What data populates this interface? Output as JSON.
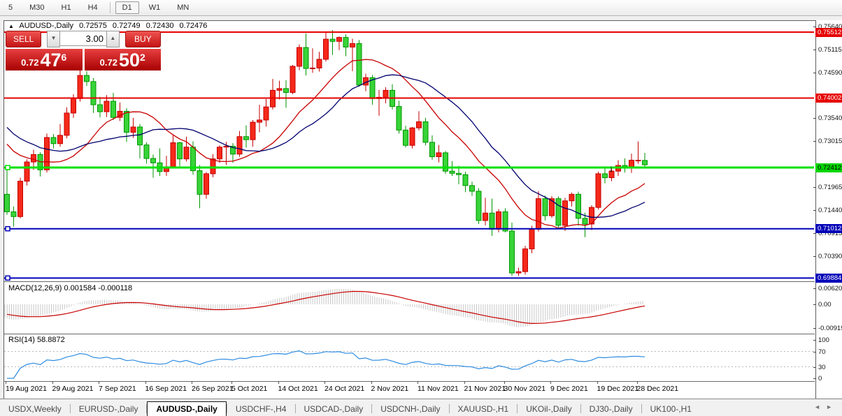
{
  "toolbar": {
    "timeframes": [
      {
        "label": "5",
        "active": false
      },
      {
        "label": "M30",
        "active": false
      },
      {
        "label": "H1",
        "active": false
      },
      {
        "label": "H4",
        "active": false
      },
      {
        "label": "D1",
        "active": true
      },
      {
        "label": "W1",
        "active": false
      },
      {
        "label": "MN",
        "active": false
      }
    ]
  },
  "chart_header": {
    "expand_icon": "▲",
    "symbol_period": "AUDUSD-,Daily",
    "open": "0.72575",
    "high": "0.72749",
    "low": "0.72430",
    "close": "0.72476"
  },
  "trade_panel": {
    "sell_label": "SELL",
    "buy_label": "BUY",
    "volume": "3.00",
    "spin_down_icon": "▼",
    "spin_up_icon": "▲",
    "sell_price_prefix": "0.72",
    "sell_price_big": "47",
    "sell_price_sup": "6",
    "buy_price_prefix": "0.72",
    "buy_price_big": "50",
    "buy_price_sup": "2"
  },
  "price_axis": {
    "ticks": [
      "0.75640",
      "0.75115",
      "0.74590",
      "0.73540",
      "0.73015",
      "0.71965",
      "0.71440",
      "0.70915",
      "0.70390"
    ],
    "badges": [
      {
        "value": "0.75512",
        "bg": "#e60000",
        "fg": "#ffffff"
      },
      {
        "value": "0.74002",
        "bg": "#e60000",
        "fg": "#ffffff"
      },
      {
        "value": "0.72412",
        "bg": "#00d500",
        "fg": "#000000"
      },
      {
        "value": "0.71012",
        "bg": "#0000b9",
        "fg": "#ffffff"
      },
      {
        "value": "0.69884",
        "bg": "#0000b9",
        "fg": "#ffffff"
      }
    ]
  },
  "indicators": {
    "macd": {
      "label": "MACD(12,26,9)",
      "values": "0.001584 -0.000118",
      "axis_ticks": [
        "0.006201",
        "0.00",
        "-0.00919"
      ]
    },
    "rsi": {
      "label": "RSI(14)",
      "value": "58.8872",
      "axis_ticks": [
        "100",
        "70",
        "30",
        "0"
      ],
      "levels": [
        70,
        30
      ]
    }
  },
  "x_axis": {
    "labels": [
      {
        "text": "19 Aug 2021",
        "index": 0
      },
      {
        "text": "29 Aug 2021",
        "index": 7
      },
      {
        "text": "7 Sep 2021",
        "index": 14
      },
      {
        "text": "16 Sep 2021",
        "index": 21
      },
      {
        "text": "26 Sep 2021",
        "index": 28
      },
      {
        "text": "5 Oct 2021",
        "index": 34
      },
      {
        "text": "14 Oct 2021",
        "index": 41
      },
      {
        "text": "24 Oct 2021",
        "index": 48
      },
      {
        "text": "2 Nov 2021",
        "index": 55
      },
      {
        "text": "11 Nov 2021",
        "index": 62
      },
      {
        "text": "21 Nov 2021",
        "index": 69
      },
      {
        "text": "30 Nov 2021",
        "index": 75
      },
      {
        "text": "9 Dec 2021",
        "index": 82
      },
      {
        "text": "19 Dec 2021",
        "index": 89
      },
      {
        "text": "28 Dec 2021",
        "index": 95
      }
    ]
  },
  "tabs": {
    "items": [
      {
        "label": "USDX,Weekly",
        "active": false
      },
      {
        "label": "EURUSD-,Daily",
        "active": false
      },
      {
        "label": "AUDUSD-,Daily",
        "active": true
      },
      {
        "label": "USDCHF-,H4",
        "active": false
      },
      {
        "label": "USDCAD-,Daily",
        "active": false
      },
      {
        "label": "USDCNH-,Daily",
        "active": false
      },
      {
        "label": "XAUUSD-,H1",
        "active": false
      },
      {
        "label": "UKOil-,Daily",
        "active": false
      },
      {
        "label": "DJ30-,Daily",
        "active": false
      },
      {
        "label": "UK100-,H1",
        "active": false
      }
    ],
    "scroll_left": "◄",
    "scroll_right": "►"
  },
  "annotations": [
    {
      "type": "down-arrow",
      "glyph": "↓",
      "index": 91,
      "price": 0.7232
    }
  ],
  "chart_data": {
    "type": "candlestick",
    "symbol": "AUDUSD-",
    "period": "Daily",
    "bull_color": "#f5291a",
    "bear_color": "#38d438",
    "hlines": [
      {
        "price": 0.75512,
        "color": "#e60000",
        "width": 2,
        "handle": false
      },
      {
        "price": 0.74002,
        "color": "#e60000",
        "width": 2,
        "handle": false
      },
      {
        "price": 0.72412,
        "color": "#00e100",
        "width": 3,
        "handle": true
      },
      {
        "price": 0.71012,
        "color": "#0000b9",
        "width": 2,
        "handle": true
      },
      {
        "price": 0.69884,
        "color": "#0000b9",
        "width": 2,
        "handle": true
      }
    ],
    "moving_averages": [
      {
        "period": 13,
        "color": "#c80000"
      },
      {
        "period": 21,
        "color": "#00006e"
      }
    ],
    "macd_settings": {
      "fast": 12,
      "slow": 26,
      "signal": 9,
      "histogram_color": "#c8c8c8",
      "signal_color": "#c80000"
    },
    "rsi_settings": {
      "period": 14,
      "color": "#2d8ce0"
    },
    "warmup_closes": [
      0.7455,
      0.7445,
      0.743,
      0.7415,
      0.74,
      0.7388,
      0.7375,
      0.7362,
      0.735,
      0.734,
      0.7332,
      0.7325,
      0.7318,
      0.7312,
      0.7308,
      0.7305,
      0.7302,
      0.73,
      0.7295,
      0.7285,
      0.727
    ],
    "candles": [
      [
        0.718,
        0.724,
        0.7133,
        0.714
      ],
      [
        0.714,
        0.7152,
        0.7106,
        0.7129
      ],
      [
        0.7129,
        0.7218,
        0.7125,
        0.721
      ],
      [
        0.721,
        0.726,
        0.72,
        0.7254
      ],
      [
        0.7254,
        0.7282,
        0.7236,
        0.7271
      ],
      [
        0.7271,
        0.7276,
        0.7221,
        0.7236
      ],
      [
        0.7236,
        0.7319,
        0.723,
        0.731
      ],
      [
        0.731,
        0.7318,
        0.7285,
        0.7296
      ],
      [
        0.7296,
        0.7341,
        0.7289,
        0.7315
      ],
      [
        0.7315,
        0.7379,
        0.7308,
        0.7366
      ],
      [
        0.7366,
        0.7409,
        0.7355,
        0.7399
      ],
      [
        0.7399,
        0.7478,
        0.7392,
        0.7452
      ],
      [
        0.7452,
        0.7462,
        0.7428,
        0.7438
      ],
      [
        0.7438,
        0.7446,
        0.7366,
        0.7385
      ],
      [
        0.7385,
        0.7403,
        0.7356,
        0.7369
      ],
      [
        0.7369,
        0.7407,
        0.7357,
        0.7393
      ],
      [
        0.7393,
        0.7412,
        0.735,
        0.7356
      ],
      [
        0.7356,
        0.739,
        0.7348,
        0.737
      ],
      [
        0.737,
        0.7377,
        0.73,
        0.7322
      ],
      [
        0.7322,
        0.7355,
        0.7309,
        0.7334
      ],
      [
        0.7334,
        0.7341,
        0.7262,
        0.7293
      ],
      [
        0.7293,
        0.7299,
        0.725,
        0.7262
      ],
      [
        0.7262,
        0.7271,
        0.7218,
        0.7252
      ],
      [
        0.7252,
        0.7285,
        0.7222,
        0.7232
      ],
      [
        0.7232,
        0.7268,
        0.7222,
        0.7243
      ],
      [
        0.7243,
        0.7317,
        0.7239,
        0.7298
      ],
      [
        0.7298,
        0.73,
        0.7244,
        0.7261
      ],
      [
        0.7261,
        0.7312,
        0.7255,
        0.7288
      ],
      [
        0.7288,
        0.7301,
        0.7225,
        0.7234
      ],
      [
        0.7234,
        0.7247,
        0.7148,
        0.718
      ],
      [
        0.718,
        0.7231,
        0.717,
        0.7227
      ],
      [
        0.7227,
        0.7272,
        0.7219,
        0.7261
      ],
      [
        0.7261,
        0.7292,
        0.7252,
        0.7288
      ],
      [
        0.7288,
        0.73,
        0.7247,
        0.729
      ],
      [
        0.729,
        0.7297,
        0.7252,
        0.7272
      ],
      [
        0.7272,
        0.7325,
        0.7266,
        0.7312
      ],
      [
        0.7312,
        0.7338,
        0.7287,
        0.7305
      ],
      [
        0.7305,
        0.735,
        0.7289,
        0.7345
      ],
      [
        0.7345,
        0.7385,
        0.7322,
        0.735
      ],
      [
        0.735,
        0.7398,
        0.7335,
        0.738
      ],
      [
        0.738,
        0.7444,
        0.7374,
        0.7418
      ],
      [
        0.7418,
        0.744,
        0.7397,
        0.7422
      ],
      [
        0.7422,
        0.7441,
        0.7378,
        0.7413
      ],
      [
        0.7413,
        0.7476,
        0.7409,
        0.7473
      ],
      [
        0.7473,
        0.7523,
        0.7464,
        0.7516
      ],
      [
        0.7516,
        0.7548,
        0.7452,
        0.7468
      ],
      [
        0.7468,
        0.7514,
        0.7458,
        0.7469
      ],
      [
        0.7469,
        0.7506,
        0.7461,
        0.7489
      ],
      [
        0.7489,
        0.7551,
        0.7484,
        0.7535
      ],
      [
        0.7535,
        0.7556,
        0.7499,
        0.753
      ],
      [
        0.753,
        0.7541,
        0.751,
        0.7539
      ],
      [
        0.7539,
        0.7546,
        0.7496,
        0.7517
      ],
      [
        0.7517,
        0.7536,
        0.7462,
        0.7525
      ],
      [
        0.7525,
        0.7533,
        0.7426,
        0.743
      ],
      [
        0.743,
        0.7456,
        0.7416,
        0.7447
      ],
      [
        0.7447,
        0.7453,
        0.7385,
        0.7399
      ],
      [
        0.7399,
        0.7419,
        0.736,
        0.7402
      ],
      [
        0.7402,
        0.7425,
        0.7388,
        0.7418
      ],
      [
        0.7418,
        0.7432,
        0.7374,
        0.7381
      ],
      [
        0.7381,
        0.7394,
        0.7319,
        0.7327
      ],
      [
        0.7327,
        0.7337,
        0.7287,
        0.7292
      ],
      [
        0.7292,
        0.7334,
        0.7285,
        0.7332
      ],
      [
        0.7332,
        0.737,
        0.7326,
        0.7346
      ],
      [
        0.7346,
        0.7355,
        0.7292,
        0.7299
      ],
      [
        0.7299,
        0.7315,
        0.7259,
        0.7266
      ],
      [
        0.7266,
        0.7293,
        0.7253,
        0.7275
      ],
      [
        0.7275,
        0.7279,
        0.7227,
        0.7233
      ],
      [
        0.7233,
        0.7256,
        0.7222,
        0.7228
      ],
      [
        0.7228,
        0.7245,
        0.7203,
        0.7225
      ],
      [
        0.7225,
        0.7232,
        0.7185,
        0.72
      ],
      [
        0.72,
        0.7209,
        0.7176,
        0.7187
      ],
      [
        0.7187,
        0.7194,
        0.7112,
        0.712
      ],
      [
        0.712,
        0.7172,
        0.7109,
        0.7137
      ],
      [
        0.7137,
        0.717,
        0.7085,
        0.71
      ],
      [
        0.71,
        0.7146,
        0.7093,
        0.714
      ],
      [
        0.714,
        0.7148,
        0.7093,
        0.7096
      ],
      [
        0.7096,
        0.7115,
        0.6993,
        0.7
      ],
      [
        0.7,
        0.7012,
        0.6993,
        0.7003
      ],
      [
        0.7003,
        0.7062,
        0.6996,
        0.7055
      ],
      [
        0.7055,
        0.7108,
        0.7045,
        0.71
      ],
      [
        0.71,
        0.7187,
        0.7095,
        0.717
      ],
      [
        0.717,
        0.7177,
        0.712,
        0.7131
      ],
      [
        0.7131,
        0.7176,
        0.7126,
        0.717
      ],
      [
        0.717,
        0.7175,
        0.7101,
        0.7109
      ],
      [
        0.7109,
        0.7172,
        0.7096,
        0.7165
      ],
      [
        0.7165,
        0.7184,
        0.7152,
        0.718
      ],
      [
        0.718,
        0.7186,
        0.7108,
        0.7125
      ],
      [
        0.7125,
        0.7138,
        0.7082,
        0.7112
      ],
      [
        0.7112,
        0.7155,
        0.7098,
        0.715
      ],
      [
        0.715,
        0.7232,
        0.7145,
        0.7227
      ],
      [
        0.7227,
        0.7243,
        0.7205,
        0.7218
      ],
      [
        0.7218,
        0.724,
        0.721,
        0.7233
      ],
      [
        0.7233,
        0.7258,
        0.7222,
        0.7246
      ],
      [
        0.7246,
        0.7262,
        0.723,
        0.7241
      ],
      [
        0.7241,
        0.7273,
        0.7229,
        0.7258
      ],
      [
        0.7258,
        0.7301,
        0.725,
        0.7258
      ],
      [
        0.72575,
        0.72749,
        0.7243,
        0.72476
      ]
    ]
  }
}
